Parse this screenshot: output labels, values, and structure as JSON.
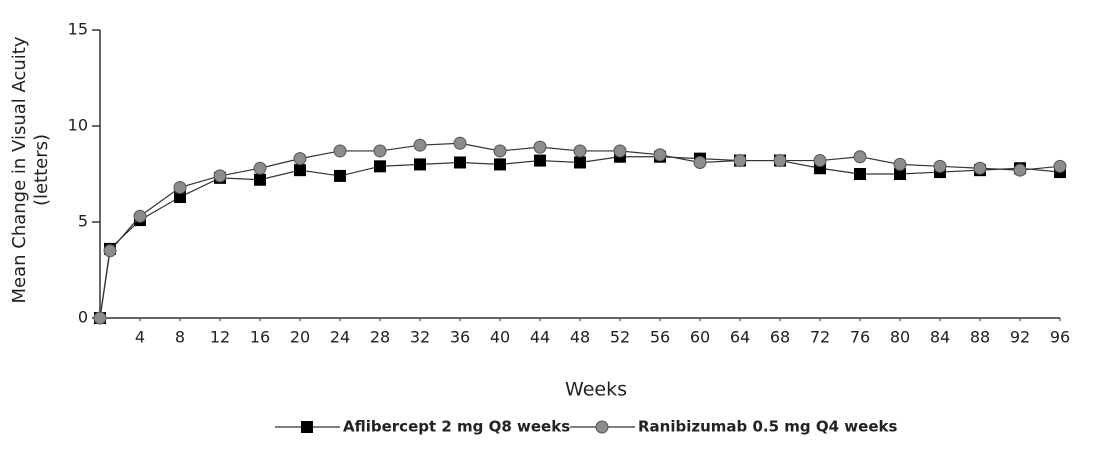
{
  "chart_data": {
    "type": "line",
    "x_label": "Weeks",
    "y_label": [
      "Mean Change in Visual Acuity",
      "(letters)"
    ],
    "x": [
      0,
      1,
      4,
      8,
      12,
      16,
      20,
      24,
      28,
      32,
      36,
      40,
      44,
      48,
      52,
      56,
      60,
      64,
      68,
      72,
      76,
      80,
      84,
      88,
      92,
      96
    ],
    "series": [
      {
        "name": "Aflibercept 2 mg Q8 weeks",
        "color": "#000000",
        "marker": "square",
        "values": [
          0,
          3.6,
          5.1,
          6.3,
          7.3,
          7.2,
          7.7,
          7.4,
          7.9,
          8.0,
          8.1,
          8.0,
          8.2,
          8.1,
          8.4,
          8.4,
          8.3,
          8.2,
          8.2,
          7.8,
          7.5,
          7.5,
          7.6,
          7.7,
          7.8,
          7.6
        ]
      },
      {
        "name": "Ranibizumab 0.5 mg Q4 weeks",
        "color": "#8c8c8c",
        "marker": "circle",
        "values": [
          0,
          3.5,
          5.3,
          6.8,
          7.4,
          7.8,
          8.3,
          8.7,
          8.7,
          9.0,
          9.1,
          8.7,
          8.9,
          8.7,
          8.7,
          8.5,
          8.1,
          8.2,
          8.2,
          8.2,
          8.4,
          8.0,
          7.9,
          7.8,
          7.7,
          7.9
        ]
      }
    ],
    "xlim": [
      0,
      96
    ],
    "xticks": [
      4,
      8,
      12,
      16,
      20,
      24,
      28,
      32,
      36,
      40,
      44,
      48,
      52,
      56,
      60,
      64,
      68,
      72,
      76,
      80,
      84,
      88,
      92,
      96
    ],
    "ylim": [
      0,
      15
    ],
    "yticks": [
      0,
      5,
      10,
      15
    ],
    "grid": false
  }
}
